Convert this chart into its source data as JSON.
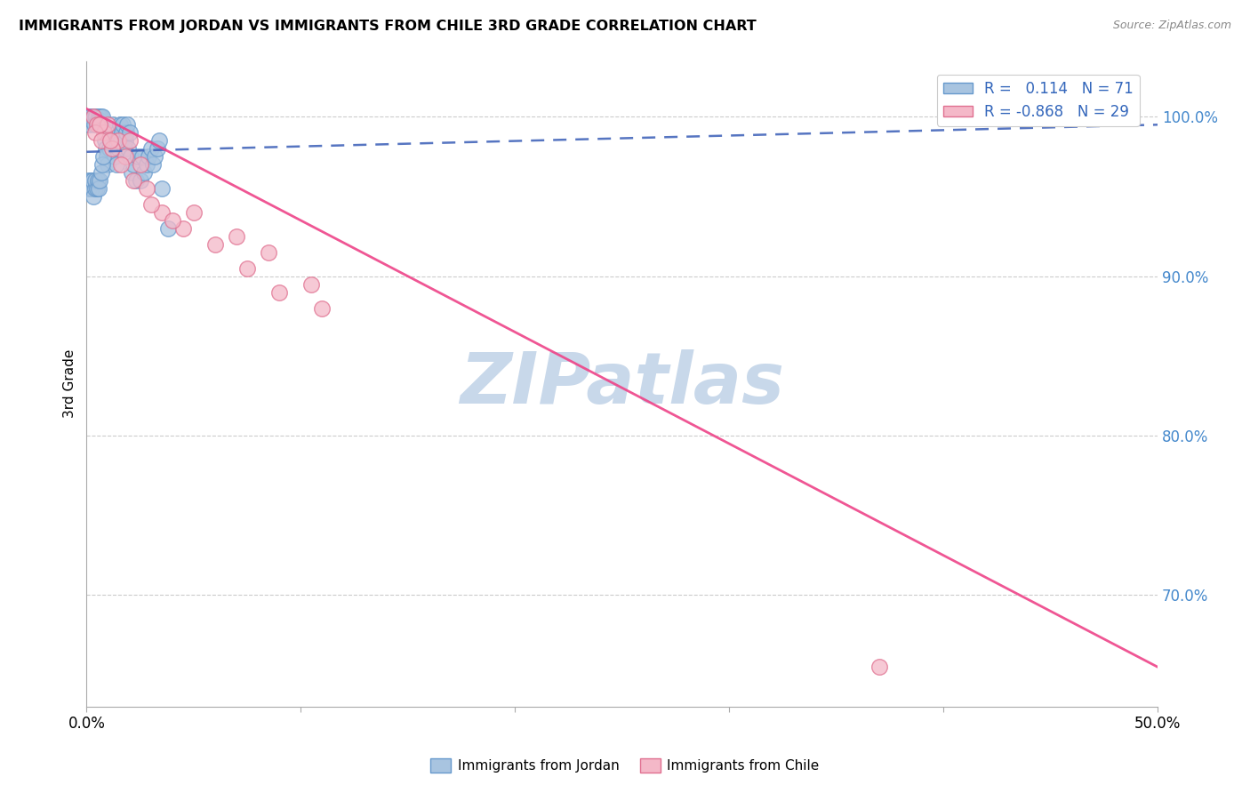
{
  "title": "IMMIGRANTS FROM JORDAN VS IMMIGRANTS FROM CHILE 3RD GRADE CORRELATION CHART",
  "source": "Source: ZipAtlas.com",
  "ylabel": "3rd Grade",
  "yticks": [
    100.0,
    90.0,
    80.0,
    70.0
  ],
  "ytick_labels": [
    "100.0%",
    "90.0%",
    "80.0%",
    "70.0%"
  ],
  "xmin": 0.0,
  "xmax": 50.0,
  "ymin": 63.0,
  "ymax": 103.5,
  "jordan_R": 0.114,
  "jordan_N": 71,
  "chile_R": -0.868,
  "chile_N": 29,
  "jordan_color": "#a8c4e0",
  "jordan_edge_color": "#6699cc",
  "chile_color": "#f4b8c8",
  "chile_edge_color": "#e07090",
  "jordan_trend_color": "#4466bb",
  "chile_trend_color": "#ee4488",
  "legend_label_jordan": "Immigrants from Jordan",
  "legend_label_chile": "Immigrants from Chile",
  "watermark_line1": "ZIP",
  "watermark_line2": "atlas",
  "watermark_color": "#c8d8ea",
  "jordan_scatter_x": [
    0.1,
    0.15,
    0.2,
    0.25,
    0.3,
    0.35,
    0.4,
    0.45,
    0.5,
    0.55,
    0.6,
    0.65,
    0.7,
    0.75,
    0.8,
    0.85,
    0.9,
    0.95,
    1.0,
    1.05,
    1.1,
    1.15,
    1.2,
    1.25,
    1.3,
    1.35,
    1.4,
    1.45,
    1.5,
    1.55,
    1.6,
    1.65,
    1.7,
    1.75,
    1.8,
    1.85,
    1.9,
    1.95,
    2.0,
    2.05,
    2.1,
    2.2,
    2.3,
    2.4,
    2.5,
    2.6,
    2.7,
    2.8,
    2.9,
    3.0,
    3.1,
    3.2,
    3.3,
    3.4,
    3.5,
    0.05,
    0.12,
    0.18,
    0.22,
    0.28,
    0.32,
    0.38,
    0.42,
    0.48,
    0.52,
    0.58,
    0.62,
    0.68,
    0.72,
    0.78,
    3.8
  ],
  "jordan_scatter_y": [
    99.5,
    100.0,
    100.0,
    99.8,
    100.0,
    99.5,
    100.0,
    100.0,
    99.7,
    100.0,
    99.8,
    100.0,
    99.5,
    100.0,
    99.0,
    98.5,
    98.0,
    97.5,
    97.0,
    98.0,
    98.5,
    99.0,
    99.5,
    98.0,
    97.5,
    98.5,
    97.0,
    99.0,
    98.0,
    99.5,
    98.5,
    99.0,
    99.5,
    98.0,
    98.5,
    99.0,
    99.5,
    98.0,
    99.0,
    97.5,
    96.5,
    97.0,
    96.0,
    97.5,
    96.0,
    97.5,
    96.5,
    97.0,
    97.5,
    98.0,
    97.0,
    97.5,
    98.0,
    98.5,
    95.5,
    96.0,
    95.5,
    96.0,
    95.5,
    96.0,
    95.0,
    95.5,
    96.0,
    95.5,
    96.0,
    95.5,
    96.0,
    96.5,
    97.0,
    97.5,
    93.0
  ],
  "chile_scatter_x": [
    0.3,
    0.5,
    0.8,
    1.0,
    1.5,
    2.0,
    2.5,
    5.0,
    7.0,
    8.5,
    10.5,
    0.4,
    0.7,
    1.2,
    1.8,
    2.8,
    3.5,
    4.5,
    6.0,
    7.5,
    9.0,
    11.0,
    0.6,
    1.1,
    1.6,
    2.2,
    3.0,
    4.0,
    37.0
  ],
  "chile_scatter_y": [
    100.0,
    99.5,
    99.0,
    99.5,
    98.5,
    98.5,
    97.0,
    94.0,
    92.5,
    91.5,
    89.5,
    99.0,
    98.5,
    98.0,
    97.5,
    95.5,
    94.0,
    93.0,
    92.0,
    90.5,
    89.0,
    88.0,
    99.5,
    98.5,
    97.0,
    96.0,
    94.5,
    93.5,
    65.5
  ],
  "jordan_trend_x0": 0.0,
  "jordan_trend_x1": 50.0,
  "jordan_trend_y0": 97.8,
  "jordan_trend_y1": 99.5,
  "chile_trend_x0": 0.0,
  "chile_trend_x1": 50.0,
  "chile_trend_y0": 100.5,
  "chile_trend_y1": 65.5
}
